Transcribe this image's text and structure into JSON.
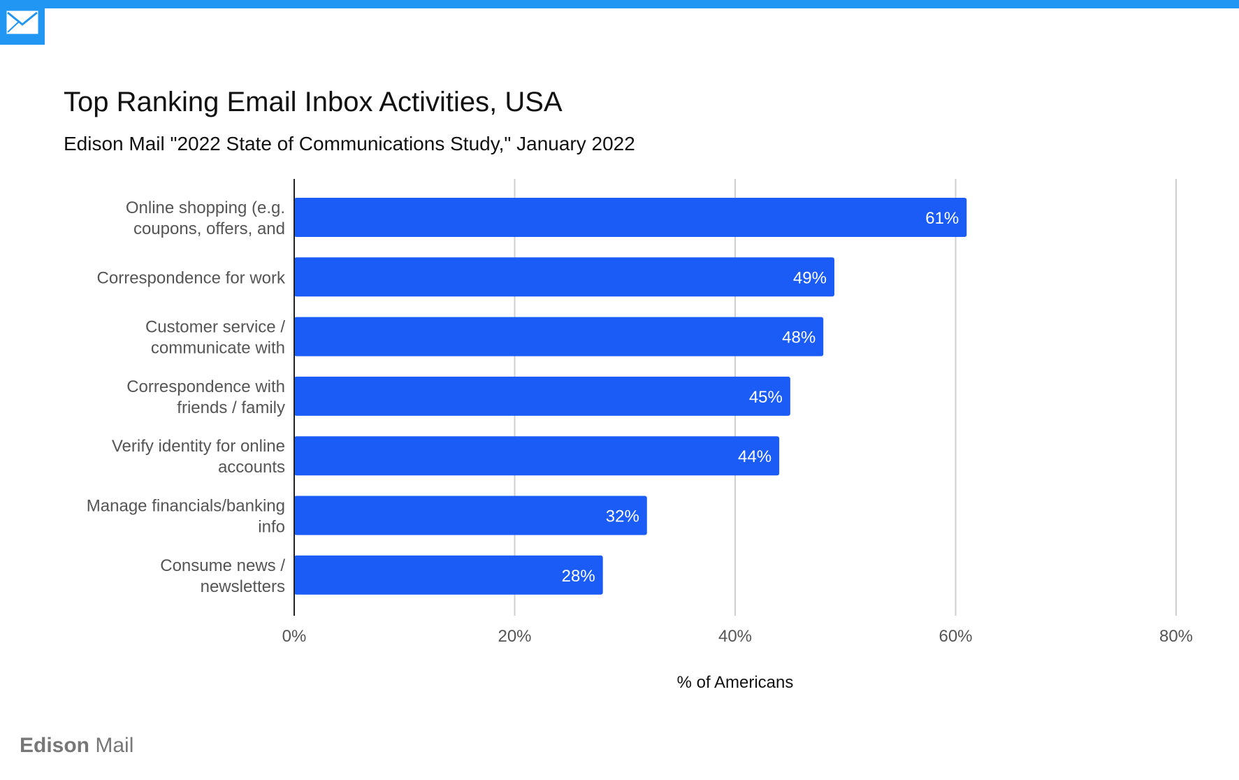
{
  "header": {
    "title": "Top Ranking Email Inbox Activities, USA",
    "subtitle": "Edison Mail \"2022 State of Communications Study,\" January 2022"
  },
  "brand": {
    "name_bold": "Edison",
    "name_light": "Mail",
    "icon": "envelope-icon"
  },
  "colors": {
    "accent": "#2196f3",
    "bar": "#1a5cf5",
    "grid": "#cfcfcf",
    "axis": "#222222",
    "label": "#555555"
  },
  "chart_data": {
    "type": "bar",
    "orientation": "horizontal",
    "title": "Top Ranking Email Inbox Activities, USA",
    "subtitle": "Edison Mail \"2022 State of Communications Study,\" January 2022",
    "categories": [
      [
        "Online shopping (e.g.",
        "coupons, offers, and"
      ],
      [
        "Correspondence for work"
      ],
      [
        "Customer service /",
        "communicate with"
      ],
      [
        "Correspondence with",
        "friends / family"
      ],
      [
        "Verify identity for online",
        "accounts"
      ],
      [
        "Manage financials/banking",
        "info"
      ],
      [
        "Consume news /",
        "newsletters"
      ]
    ],
    "values": [
      61,
      49,
      48,
      45,
      44,
      32,
      28
    ],
    "data_labels": [
      "61%",
      "49%",
      "48%",
      "45%",
      "44%",
      "32%",
      "28%"
    ],
    "xlabel": "% of Americans",
    "ylabel": "",
    "xlim": [
      0,
      80
    ],
    "x_ticks": [
      0,
      20,
      40,
      60,
      80
    ],
    "x_tick_labels": [
      "0%",
      "20%",
      "40%",
      "60%",
      "80%"
    ],
    "grid": true,
    "legend": "none"
  }
}
